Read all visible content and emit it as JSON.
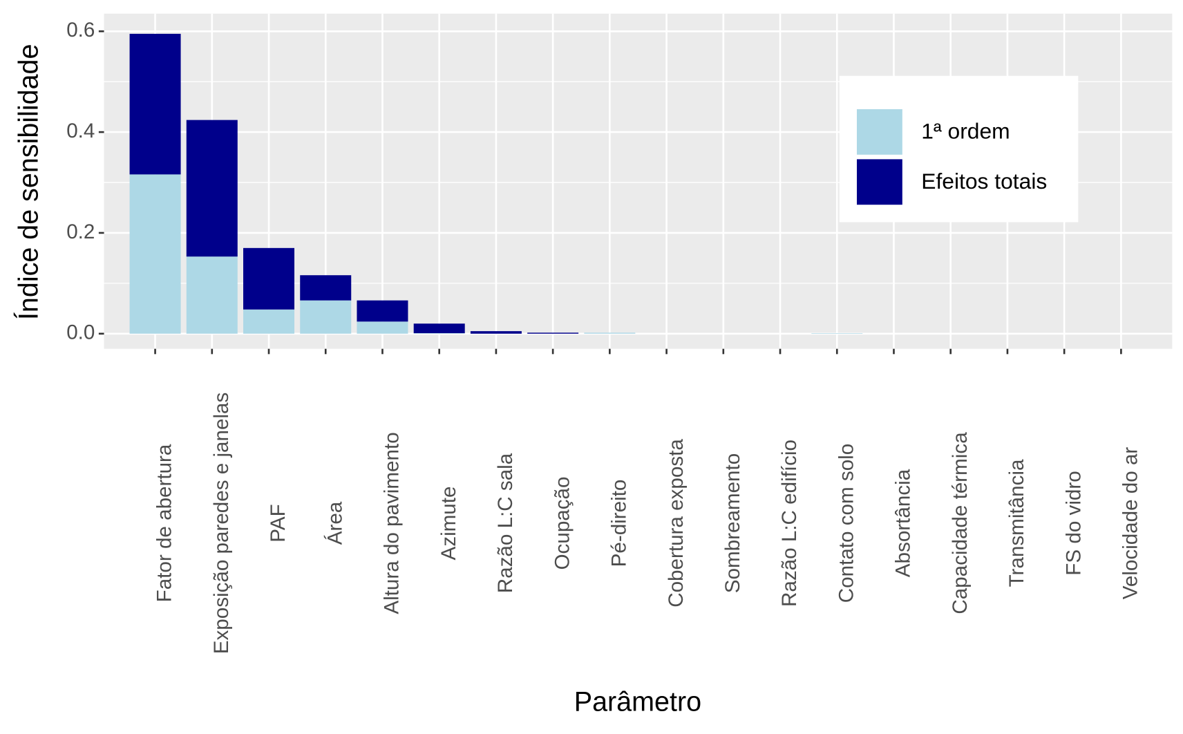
{
  "chart_data": {
    "type": "stacked_bar",
    "x_label": "Parâmetro",
    "y_label": "Índice de sensibilidade",
    "categories": [
      "Fator de abertura",
      "Exposição paredes e janelas",
      "PAF",
      "Área",
      "Altura do pavimento",
      "Azimute",
      "Razão L:C sala",
      "Ocupação",
      "Pé-direito",
      "Cobertura exposta",
      "Sombreamento",
      "Razão L:C edifício",
      "Contato com solo",
      "Absortância",
      "Capacidade térmica",
      "Transmitância",
      "FS do vidro",
      "Velocidade do ar"
    ],
    "series": [
      {
        "name": "1ª ordem",
        "color": "#add8e6",
        "values": [
          0.316,
          0.153,
          0.048,
          0.066,
          0.024,
          0.001,
          0,
          0,
          0.002,
          0,
          0,
          0,
          0.001,
          0,
          0,
          0,
          0,
          0
        ]
      },
      {
        "name": "Efeitos totais",
        "color": "#00008b",
        "values": [
          0.279,
          0.271,
          0.122,
          0.05,
          0.042,
          0.019,
          0.005,
          0.002,
          0,
          0,
          0,
          0,
          0,
          0,
          0,
          0,
          0,
          0
        ]
      }
    ],
    "ylim": [
      -0.03,
      0.635
    ],
    "yticks": [
      {
        "value": 0,
        "label": "0.0"
      },
      0.2,
      0.4,
      0.6
    ],
    "grid": true,
    "legend_position": "right-inside"
  }
}
